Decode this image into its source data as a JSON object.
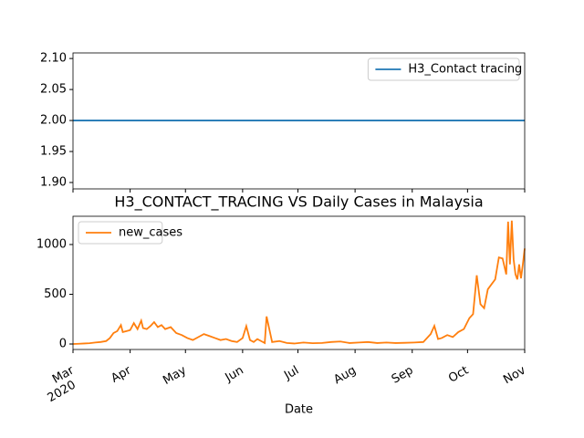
{
  "chart_data": [
    {
      "type": "line",
      "xlim": [
        0,
        245
      ],
      "ylim": [
        1.8897,
        2.109
      ],
      "yticks": [
        {
          "value": 1.9,
          "label": "1.90"
        },
        {
          "value": 1.95,
          "label": "1.95"
        },
        {
          "value": 2.0,
          "label": "2.00"
        },
        {
          "value": 2.05,
          "label": "2.05"
        },
        {
          "value": 2.1,
          "label": "2.10"
        }
      ],
      "legend": "upper right",
      "series": [
        {
          "name": "H3_Contact tracing",
          "color": "#1f77b4",
          "x": [
            0,
            245
          ],
          "values": [
            2,
            2
          ]
        }
      ]
    },
    {
      "type": "line",
      "title": "H3_CONTACT_TRACING VS Daily Cases in Malaysia",
      "x_label": "Date",
      "xlim": [
        0,
        245
      ],
      "xticks": [
        {
          "value": 0,
          "label": "Mar"
        },
        {
          "value": 31,
          "label": "Apr"
        },
        {
          "value": 61,
          "label": "May"
        },
        {
          "value": 92,
          "label": "Jun"
        },
        {
          "value": 122,
          "label": "Jul"
        },
        {
          "value": 153,
          "label": "Aug"
        },
        {
          "value": 184,
          "label": "Sep"
        },
        {
          "value": 214,
          "label": "Oct"
        },
        {
          "value": 245,
          "label": "Nov"
        }
      ],
      "x_year_label": "2020",
      "ylim": [
        -55,
        1284
      ],
      "yticks": [
        0,
        500,
        1000
      ],
      "legend": "upper left",
      "series": [
        {
          "name": "new_cases",
          "color": "#ff7f0e",
          "x": [
            0,
            3,
            6,
            9,
            12,
            15,
            18,
            20,
            22,
            24,
            26,
            27,
            29,
            31,
            33,
            35,
            37,
            38,
            40,
            42,
            44,
            46,
            48,
            50,
            53,
            56,
            59,
            62,
            65,
            68,
            71,
            74,
            77,
            80,
            83,
            86,
            89,
            92,
            94,
            96,
            98,
            100,
            102,
            104,
            105,
            108,
            112,
            116,
            120,
            125,
            130,
            135,
            140,
            145,
            150,
            155,
            160,
            165,
            170,
            175,
            180,
            185,
            190,
            194,
            196,
            198,
            200,
            203,
            206,
            209,
            212,
            215,
            217,
            219,
            221,
            223,
            225,
            227,
            229,
            231,
            233,
            235,
            236,
            237,
            238,
            239,
            240,
            241,
            242,
            243,
            244,
            245
          ],
          "values": [
            0,
            2,
            5,
            8,
            15,
            20,
            30,
            60,
            110,
            130,
            190,
            120,
            130,
            140,
            210,
            150,
            235,
            160,
            150,
            180,
            220,
            170,
            190,
            150,
            170,
            110,
            90,
            60,
            40,
            70,
            100,
            80,
            60,
            40,
            50,
            30,
            20,
            60,
            180,
            40,
            20,
            50,
            30,
            10,
            277,
            20,
            30,
            10,
            5,
            15,
            8,
            10,
            20,
            25,
            10,
            15,
            20,
            10,
            15,
            10,
            12,
            15,
            20,
            100,
            182,
            50,
            60,
            90,
            70,
            120,
            150,
            260,
            300,
            690,
            400,
            360,
            550,
            600,
            650,
            870,
            860,
            700,
            1230,
            800,
            1240,
            850,
            700,
            650,
            800,
            660,
            800,
            960
          ]
        }
      ]
    }
  ]
}
